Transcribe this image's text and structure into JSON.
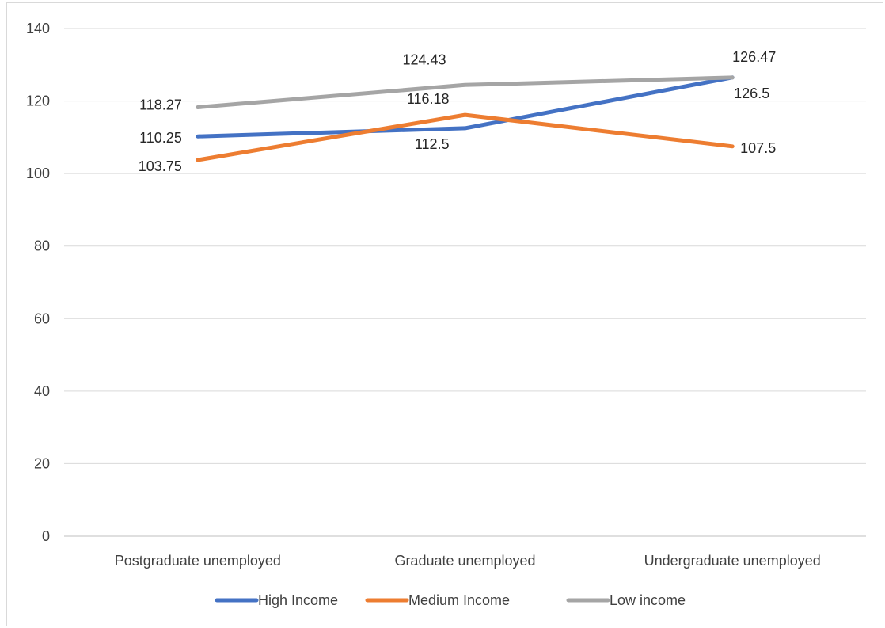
{
  "chart_data": {
    "type": "line",
    "title": "",
    "xlabel": "",
    "ylabel": "",
    "categories": [
      "Postgraduate unemployed",
      "Graduate unemployed",
      "Undergraduate unemployed"
    ],
    "ylim": [
      0,
      140
    ],
    "yticks": [
      0,
      20,
      40,
      60,
      80,
      100,
      120,
      140
    ],
    "grid": true,
    "legend": "bottom",
    "series": [
      {
        "name": "High Income",
        "color": "#4472C4",
        "values": [
          110.25,
          112.5,
          126.5
        ],
        "labels": [
          "110.25",
          "112.5",
          "126.5"
        ]
      },
      {
        "name": "Medium Income",
        "color": "#ED7D31",
        "values": [
          103.75,
          116.18,
          107.5
        ],
        "labels": [
          "103.75",
          "116.18",
          "107.5"
        ]
      },
      {
        "name": "Low income",
        "color": "#A5A5A5",
        "values": [
          118.27,
          124.43,
          126.47
        ],
        "labels": [
          "118.27",
          "124.43",
          "126.47"
        ]
      }
    ]
  }
}
